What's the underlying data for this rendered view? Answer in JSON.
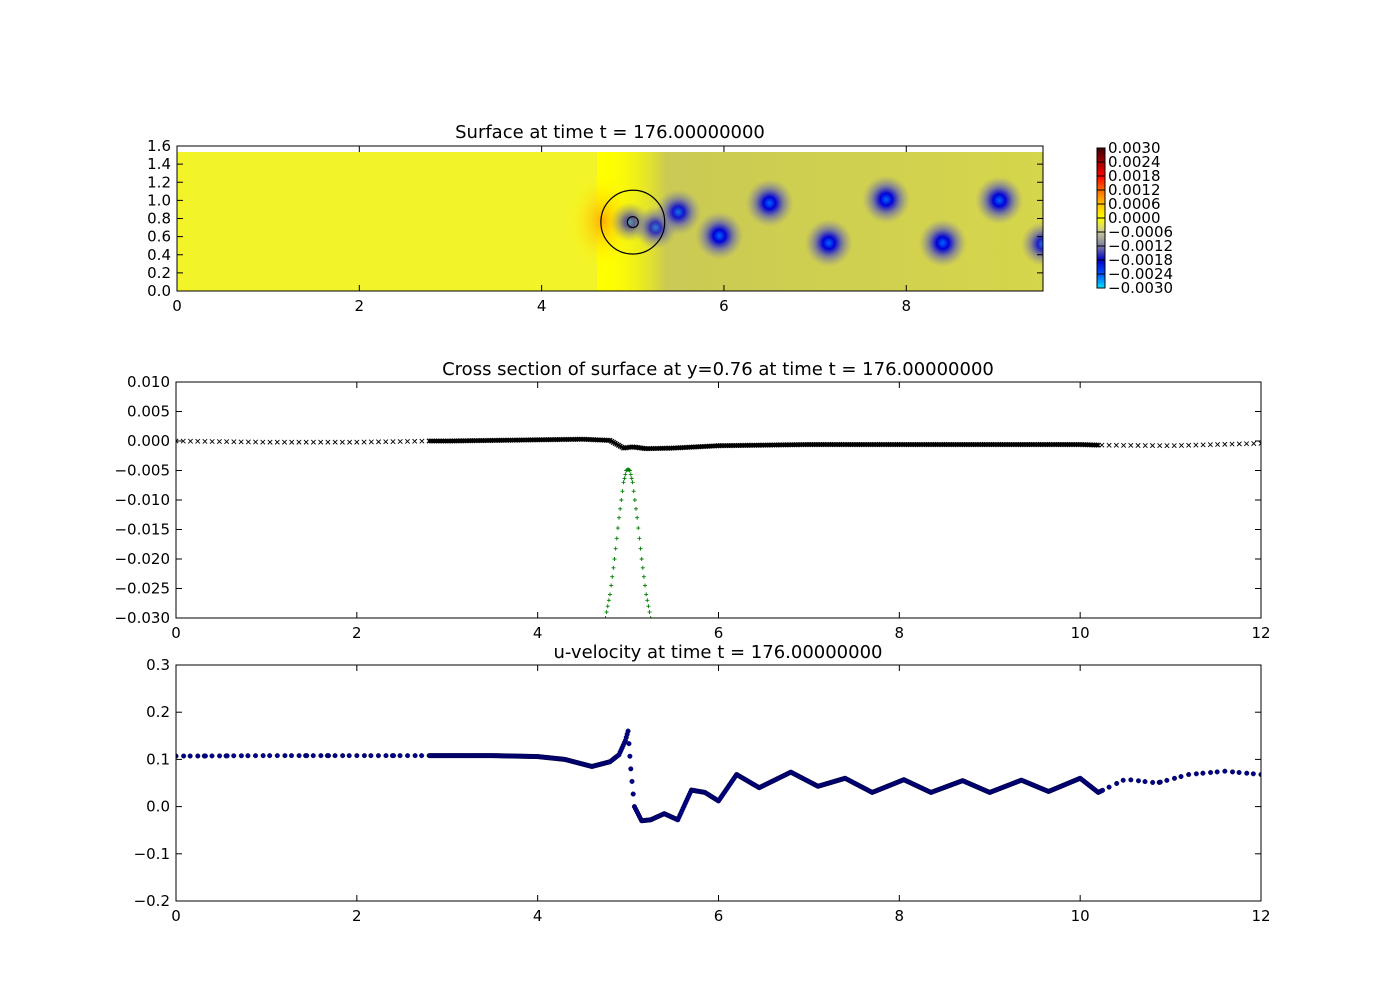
{
  "chart_data": [
    {
      "type": "heatmap",
      "title": "Surface at time t =   176.00000000",
      "xlim": [
        0,
        9.5
      ],
      "ylim": [
        0,
        1.6
      ],
      "xticks": [
        "0",
        "2",
        "4",
        "6",
        "8"
      ],
      "yticks": [
        "0.0",
        "0.2",
        "0.4",
        "0.6",
        "0.8",
        "1.0",
        "1.2",
        "1.4",
        "1.6"
      ],
      "colorbar": {
        "range": [
          -0.003,
          0.003
        ],
        "ticks": [
          "0.0030",
          "0.0024",
          "0.0018",
          "0.0012",
          "0.0006",
          "0.0000",
          "−0.0006",
          "−0.0012",
          "−0.0018",
          "−0.0024",
          "−0.0030"
        ],
        "colormap": [
          "#00e5ff",
          "#0050ff",
          "#0000c8",
          "#7e7ea0",
          "#c8c89a",
          "#ffff00",
          "#ffc000",
          "#ff6a00",
          "#ff0000",
          "#a00000",
          "#400000"
        ]
      },
      "domain_top": 1.52,
      "cylinder": {
        "center": [
          5.0,
          0.76
        ],
        "radius": 0.35,
        "inner_radius": 0.06
      },
      "vortices": [
        {
          "x": 4.97,
          "y": 0.76,
          "value": -0.0007
        },
        {
          "x": 5.25,
          "y": 0.7,
          "value": -0.0013
        },
        {
          "x": 5.5,
          "y": 0.87,
          "value": -0.0018
        },
        {
          "x": 5.95,
          "y": 0.61,
          "value": -0.0022
        },
        {
          "x": 6.5,
          "y": 0.97,
          "value": -0.0022
        },
        {
          "x": 7.15,
          "y": 0.53,
          "value": -0.0022
        },
        {
          "x": 7.78,
          "y": 1.01,
          "value": -0.0022
        },
        {
          "x": 8.4,
          "y": 0.53,
          "value": -0.0022
        },
        {
          "x": 9.02,
          "y": 1.0,
          "value": -0.0022
        },
        {
          "x": 9.5,
          "y": 0.52,
          "value": -0.0016
        }
      ]
    },
    {
      "type": "scatter",
      "title": "Cross section of surface at y=0.76 at time t =   176.00000000",
      "xlim": [
        0,
        12
      ],
      "ylim": [
        -0.03,
        0.01
      ],
      "xticks": [
        "0",
        "2",
        "4",
        "6",
        "8",
        "10",
        "12"
      ],
      "yticks": [
        "0.010",
        "0.005",
        "0.000",
        "−0.005",
        "−0.010",
        "−0.015",
        "−0.020",
        "−0.025",
        "−0.030"
      ],
      "series": [
        {
          "marker": "x",
          "color": "#000000",
          "x": [
            0,
            1,
            2,
            2.8,
            3,
            4,
            4.5,
            4.8,
            4.95,
            5.05,
            5.2,
            5.5,
            6,
            7,
            8,
            9,
            10,
            10.2,
            11,
            12
          ],
          "y": [
            0.0,
            -0.0002,
            -0.0002,
            0.0,
            0.0,
            0.0002,
            0.0003,
            0.0001,
            -0.0012,
            -0.001,
            -0.0013,
            -0.0012,
            -0.0008,
            -0.0006,
            -0.0006,
            -0.0006,
            -0.0006,
            -0.0007,
            -0.0008,
            -0.0004
          ]
        },
        {
          "marker": "+",
          "color": "#007f00",
          "x": [
            4.75,
            4.8,
            4.85,
            4.9,
            4.95,
            4.98,
            5.0,
            5.02,
            5.05,
            5.1,
            5.15,
            5.2,
            5.25
          ],
          "y": [
            -0.03,
            -0.026,
            -0.02,
            -0.013,
            -0.007,
            -0.005,
            -0.0048,
            -0.005,
            -0.007,
            -0.013,
            -0.02,
            -0.026,
            -0.03
          ]
        }
      ]
    },
    {
      "type": "scatter",
      "title": "u-velocity at time t =   176.00000000",
      "xlim": [
        0,
        12
      ],
      "ylim": [
        -0.2,
        0.3
      ],
      "xticks": [
        "0",
        "2",
        "4",
        "6",
        "8",
        "10",
        "12"
      ],
      "yticks": [
        "0.3",
        "0.2",
        "0.1",
        "0.0",
        "−0.1",
        "−0.2"
      ],
      "series": [
        {
          "marker": "o",
          "color": "#00008b",
          "x": [
            0,
            1,
            2,
            2.8,
            3.5,
            4.0,
            4.3,
            4.6,
            4.8,
            4.9,
            4.97,
            5.0,
            5.03,
            5.07,
            5.15,
            5.25,
            5.4,
            5.55,
            5.7,
            5.85,
            6.0,
            6.2,
            6.45,
            6.8,
            7.1,
            7.4,
            7.7,
            8.05,
            8.35,
            8.7,
            9.0,
            9.35,
            9.65,
            10.0,
            10.2,
            10.5,
            10.85,
            11.2,
            11.6,
            12.0
          ],
          "y": [
            0.107,
            0.108,
            0.108,
            0.108,
            0.108,
            0.106,
            0.1,
            0.085,
            0.095,
            0.11,
            0.14,
            0.16,
            0.08,
            0.0,
            -0.03,
            -0.028,
            -0.015,
            -0.028,
            0.035,
            0.03,
            0.012,
            0.068,
            0.04,
            0.073,
            0.043,
            0.06,
            0.03,
            0.057,
            0.03,
            0.055,
            0.03,
            0.056,
            0.032,
            0.06,
            0.03,
            0.058,
            0.05,
            0.068,
            0.075,
            0.068
          ]
        }
      ]
    }
  ]
}
